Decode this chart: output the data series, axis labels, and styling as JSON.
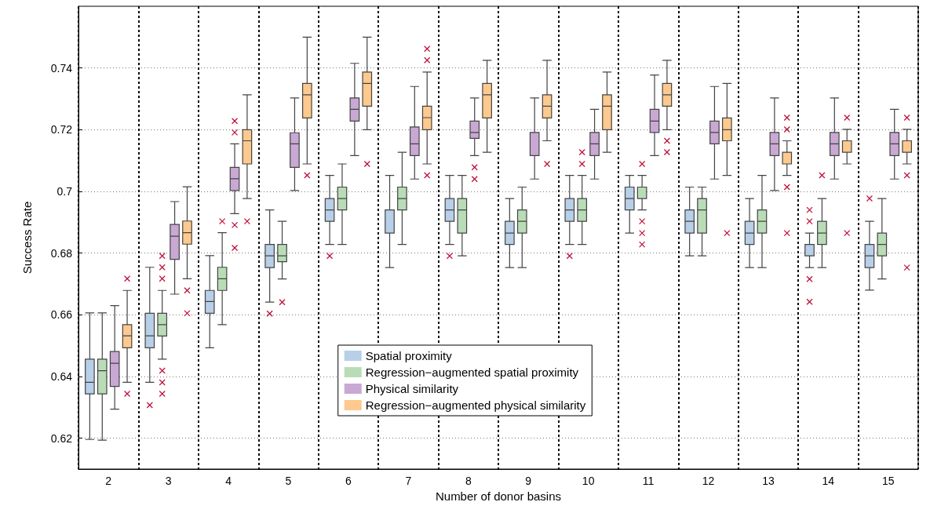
{
  "chart_data": {
    "type": "box",
    "xlabel": "Number of donor basins",
    "ylabel": "Success Rate",
    "categories": [
      "2",
      "3",
      "4",
      "5",
      "6",
      "7",
      "8",
      "9",
      "10",
      "11",
      "12",
      "13",
      "14",
      "15"
    ],
    "ylim": [
      0.61,
      0.76
    ],
    "yticks": [
      0.62,
      0.64,
      0.66,
      0.68,
      0.7,
      0.72,
      0.74
    ],
    "grid": true,
    "legend": "bottom",
    "series": [
      {
        "name": "Spatial proximity",
        "color": "#b8cfe8",
        "boxes": [
          {
            "low": 0.6196,
            "q1": 0.6344,
            "median": 0.6381,
            "q3": 0.6456,
            "high": 0.6606
          },
          {
            "low": 0.6381,
            "q1": 0.6493,
            "median": 0.6532,
            "q3": 0.6605,
            "high": 0.6754,
            "outliers": [
              0.6307
            ]
          },
          {
            "low": 0.6493,
            "q1": 0.6605,
            "median": 0.6643,
            "q3": 0.6679,
            "high": 0.6792
          },
          {
            "low": 0.6641,
            "q1": 0.6753,
            "median": 0.6791,
            "q3": 0.6828,
            "high": 0.694,
            "outliers": [
              0.6604
            ]
          },
          {
            "low": 0.6828,
            "q1": 0.6903,
            "median": 0.694,
            "q3": 0.6977,
            "high": 0.7052,
            "outliers": [
              0.6791
            ]
          },
          {
            "low": 0.6753,
            "q1": 0.6865,
            "median": 0.694,
            "q3": 0.694,
            "high": 0.7052
          },
          {
            "low": 0.6828,
            "q1": 0.6903,
            "median": 0.694,
            "q3": 0.6977,
            "high": 0.7052,
            "outliers": [
              0.6791
            ]
          },
          {
            "low": 0.6753,
            "q1": 0.6828,
            "median": 0.6865,
            "q3": 0.6903,
            "high": 0.6977
          },
          {
            "low": 0.6828,
            "q1": 0.6903,
            "median": 0.694,
            "q3": 0.6977,
            "high": 0.7052,
            "outliers": [
              0.6791
            ]
          },
          {
            "low": 0.6865,
            "q1": 0.694,
            "median": 0.6977,
            "q3": 0.7014,
            "high": 0.7052
          },
          {
            "low": 0.6791,
            "q1": 0.6865,
            "median": 0.6903,
            "q3": 0.694,
            "high": 0.7014
          },
          {
            "low": 0.6753,
            "q1": 0.6828,
            "median": 0.6865,
            "q3": 0.6903,
            "high": 0.6977
          },
          {
            "low": 0.6753,
            "q1": 0.6791,
            "median": 0.6791,
            "q3": 0.6828,
            "high": 0.6865,
            "outliers": [
              0.694,
              0.6903,
              0.6716,
              0.6642
            ]
          },
          {
            "low": 0.668,
            "q1": 0.6753,
            "median": 0.6791,
            "q3": 0.6828,
            "high": 0.6903,
            "outliers": [
              0.6977
            ]
          }
        ]
      },
      {
        "name": "Regression−augmented spatial proximity",
        "color": "#b9dcb7",
        "boxes": [
          {
            "low": 0.6194,
            "q1": 0.6344,
            "median": 0.6419,
            "q3": 0.6456,
            "high": 0.6606
          },
          {
            "low": 0.6456,
            "q1": 0.6531,
            "median": 0.6568,
            "q3": 0.6605,
            "high": 0.6679,
            "outliers": [
              0.6791,
              0.6754,
              0.6717,
              0.6419,
              0.6381,
              0.6344
            ]
          },
          {
            "low": 0.6568,
            "q1": 0.6679,
            "median": 0.6717,
            "q3": 0.6754,
            "high": 0.6866,
            "outliers": [
              0.6903
            ]
          },
          {
            "low": 0.6716,
            "q1": 0.6772,
            "median": 0.6791,
            "q3": 0.6828,
            "high": 0.6903,
            "outliers": [
              0.6641
            ]
          },
          {
            "low": 0.6828,
            "q1": 0.694,
            "median": 0.6977,
            "q3": 0.7014,
            "high": 0.7089
          },
          {
            "low": 0.6828,
            "q1": 0.694,
            "median": 0.6977,
            "q3": 0.7014,
            "high": 0.7127
          },
          {
            "low": 0.6791,
            "q1": 0.6865,
            "median": 0.694,
            "q3": 0.6977,
            "high": 0.7052
          },
          {
            "low": 0.6753,
            "q1": 0.6865,
            "median": 0.6903,
            "q3": 0.694,
            "high": 0.7014
          },
          {
            "low": 0.6828,
            "q1": 0.6903,
            "median": 0.694,
            "q3": 0.6977,
            "high": 0.7052,
            "outliers": [
              0.7127,
              0.7089
            ]
          },
          {
            "low": 0.694,
            "q1": 0.6977,
            "median": 0.6977,
            "q3": 0.7014,
            "high": 0.7052,
            "outliers": [
              0.7089,
              0.6903,
              0.6865,
              0.6828
            ]
          },
          {
            "low": 0.6791,
            "q1": 0.6865,
            "median": 0.694,
            "q3": 0.6977,
            "high": 0.7014
          },
          {
            "low": 0.6753,
            "q1": 0.6865,
            "median": 0.6903,
            "q3": 0.694,
            "high": 0.7052
          },
          {
            "low": 0.6753,
            "q1": 0.6828,
            "median": 0.6865,
            "q3": 0.6903,
            "high": 0.6977,
            "outliers": [
              0.7052
            ]
          },
          {
            "low": 0.6716,
            "q1": 0.6791,
            "median": 0.6828,
            "q3": 0.6865,
            "high": 0.6977
          }
        ]
      },
      {
        "name": "Physical similarity",
        "color": "#c9a8d4",
        "boxes": [
          {
            "low": 0.6294,
            "q1": 0.6368,
            "median": 0.6443,
            "q3": 0.6481,
            "high": 0.663
          },
          {
            "low": 0.6667,
            "q1": 0.678,
            "median": 0.6855,
            "q3": 0.6893,
            "high": 0.6967
          },
          {
            "low": 0.6928,
            "q1": 0.7003,
            "median": 0.7041,
            "q3": 0.7078,
            "high": 0.7154,
            "outliers": [
              0.7228,
              0.7191,
              0.6891,
              0.6817
            ]
          },
          {
            "low": 0.7003,
            "q1": 0.7078,
            "median": 0.7154,
            "q3": 0.719,
            "high": 0.7303
          },
          {
            "low": 0.7116,
            "q1": 0.7228,
            "median": 0.7266,
            "q3": 0.7303,
            "high": 0.7415
          },
          {
            "low": 0.704,
            "q1": 0.7116,
            "median": 0.7154,
            "q3": 0.7209,
            "high": 0.734
          },
          {
            "low": 0.7116,
            "q1": 0.7172,
            "median": 0.7191,
            "q3": 0.7228,
            "high": 0.7303,
            "outliers": [
              0.7078,
              0.704
            ]
          },
          {
            "low": 0.704,
            "q1": 0.7116,
            "median": 0.7191,
            "q3": 0.7191,
            "high": 0.7303
          },
          {
            "low": 0.704,
            "q1": 0.7116,
            "median": 0.7154,
            "q3": 0.7191,
            "high": 0.7266
          },
          {
            "low": 0.7116,
            "q1": 0.7191,
            "median": 0.7228,
            "q3": 0.7266,
            "high": 0.7377
          },
          {
            "low": 0.704,
            "q1": 0.7154,
            "median": 0.7191,
            "q3": 0.7228,
            "high": 0.734
          },
          {
            "low": 0.7003,
            "q1": 0.7116,
            "median": 0.7154,
            "q3": 0.7191,
            "high": 0.7303
          },
          {
            "low": 0.704,
            "q1": 0.7116,
            "median": 0.7154,
            "q3": 0.7191,
            "high": 0.7303
          },
          {
            "low": 0.704,
            "q1": 0.7116,
            "median": 0.7154,
            "q3": 0.7191,
            "high": 0.7266
          }
        ]
      },
      {
        "name": "Regression−augmented physical similarity",
        "color": "#fdc98e",
        "boxes": [
          {
            "low": 0.6381,
            "q1": 0.6493,
            "median": 0.6532,
            "q3": 0.6568,
            "high": 0.6679,
            "outliers": [
              0.6717,
              0.6344
            ]
          },
          {
            "low": 0.6717,
            "q1": 0.6829,
            "median": 0.6866,
            "q3": 0.6904,
            "high": 0.7015,
            "outliers": [
              0.6679,
              0.6605
            ]
          },
          {
            "low": 0.6977,
            "q1": 0.7089,
            "median": 0.7164,
            "q3": 0.72,
            "high": 0.7313,
            "outliers": [
              0.6903
            ]
          },
          {
            "low": 0.7089,
            "q1": 0.7238,
            "median": 0.7313,
            "q3": 0.735,
            "high": 0.75,
            "outliers": [
              0.7052
            ]
          },
          {
            "low": 0.72,
            "q1": 0.7276,
            "median": 0.735,
            "q3": 0.7387,
            "high": 0.75,
            "outliers": [
              0.7089
            ]
          },
          {
            "low": 0.7089,
            "q1": 0.72,
            "median": 0.7239,
            "q3": 0.7276,
            "high": 0.7387,
            "outliers": [
              0.7462,
              0.7425,
              0.7052
            ]
          },
          {
            "low": 0.7127,
            "q1": 0.7238,
            "median": 0.7313,
            "q3": 0.735,
            "high": 0.7425
          },
          {
            "low": 0.7164,
            "q1": 0.7238,
            "median": 0.7276,
            "q3": 0.7313,
            "high": 0.7425,
            "outliers": [
              0.7089
            ]
          },
          {
            "low": 0.7127,
            "q1": 0.72,
            "median": 0.7276,
            "q3": 0.7313,
            "high": 0.7387
          },
          {
            "low": 0.72,
            "q1": 0.7276,
            "median": 0.7313,
            "q3": 0.735,
            "high": 0.7425,
            "outliers": [
              0.7164,
              0.7127
            ]
          },
          {
            "low": 0.7052,
            "q1": 0.7164,
            "median": 0.72,
            "q3": 0.7238,
            "high": 0.735,
            "outliers": [
              0.6865
            ]
          },
          {
            "low": 0.7052,
            "q1": 0.7089,
            "median": 0.7089,
            "q3": 0.7127,
            "high": 0.7164,
            "outliers": [
              0.7239,
              0.7201,
              0.7014,
              0.6865
            ]
          },
          {
            "low": 0.7089,
            "q1": 0.7127,
            "median": 0.7127,
            "q3": 0.7164,
            "high": 0.7201,
            "outliers": [
              0.7239,
              0.6865
            ]
          },
          {
            "low": 0.7089,
            "q1": 0.7127,
            "median": 0.7127,
            "q3": 0.7164,
            "high": 0.7201,
            "outliers": [
              0.7239,
              0.7052,
              0.6753
            ]
          }
        ]
      }
    ]
  }
}
